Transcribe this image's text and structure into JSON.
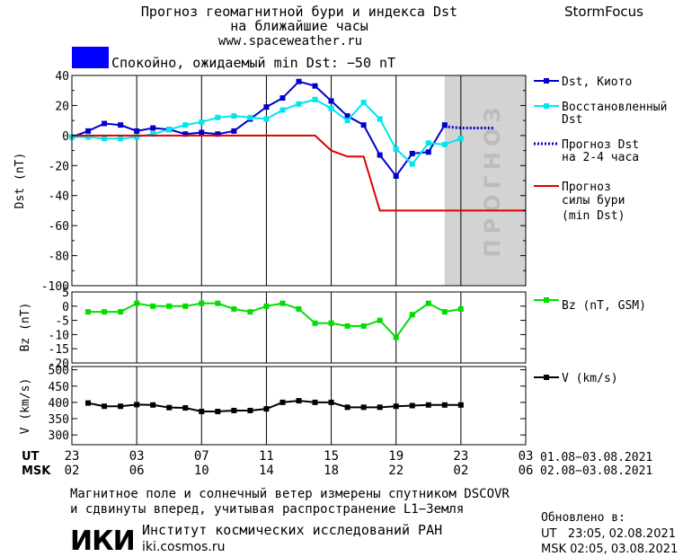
{
  "header": {
    "title_line1": "Прогноз геомагнитной бури и индекса Dst",
    "title_line2": "на ближайшие часы",
    "site": "www.spaceweather.ru",
    "brand": "StormFocus"
  },
  "status": {
    "text": "Спокойно, ожидаемый min Dst: −50 nT",
    "color": "#0000ff"
  },
  "forecast_band_label": "ПРОГНОЗ",
  "legend": {
    "dst_kyoto": "Dst, Киото",
    "restored_1": "Восстановленный",
    "restored_2": "Dst",
    "forecast_1": "Прогноз Dst",
    "forecast_2": "на 2-4 часа",
    "storm_1": "Прогноз",
    "storm_2": "силы бури",
    "storm_3": "(min Dst)",
    "bz": "Bz (nT, GSM)",
    "v": "V (km/s)"
  },
  "time_axis": {
    "ut_label": "UT",
    "msk_label": "MSK",
    "ut_ticks": [
      "23",
      "03",
      "07",
      "11",
      "15",
      "19",
      "23",
      "03"
    ],
    "msk_ticks": [
      "02",
      "06",
      "10",
      "14",
      "18",
      "22",
      "02",
      "06"
    ],
    "ut_range": "01.08−03.08.2021",
    "msk_range": "02.08−03.08.2021"
  },
  "footer": {
    "note_line1": "Магнитное поле и солнечный ветер измерены спутником DSCOVR",
    "note_line2": "и сдвинуты вперед, учитывая распространение L1−Земля",
    "institute_logo": "ИКИ",
    "institute": "Институт космических исследований РАН",
    "institute_site": "iki.cosmos.ru",
    "updated": "Обновлено в:",
    "updated_ut": "UT   23:05, 02.08.2021",
    "updated_msk": "MSK 02:05, 03.08.2021"
  },
  "chart_data": [
    {
      "type": "line",
      "ylabel": "Dst (nT)",
      "ylim": [
        -100,
        40
      ],
      "yticks": [
        40,
        20,
        0,
        -20,
        -40,
        -60,
        -80,
        -100
      ],
      "xlim": [
        0,
        28
      ],
      "forecast_region": [
        23,
        28
      ],
      "series": [
        {
          "name": "Dst, Киото",
          "color": "#0000cc",
          "x": [
            0,
            1,
            2,
            3,
            4,
            5,
            6,
            7,
            8,
            9,
            10,
            11,
            12,
            13,
            14,
            15,
            16,
            17,
            18,
            19,
            20,
            21,
            22,
            23
          ],
          "y": [
            -1,
            3,
            8,
            7,
            3,
            5,
            4,
            1,
            2,
            1,
            3,
            11,
            19,
            25,
            36,
            33,
            23,
            13,
            7,
            -13,
            -27,
            -12,
            -11,
            7
          ]
        },
        {
          "name": "Восстановленный Dst",
          "color": "#00e5ee",
          "x": [
            0,
            1,
            2,
            3,
            4,
            5,
            6,
            7,
            8,
            9,
            10,
            11,
            12,
            13,
            14,
            15,
            16,
            17,
            18,
            19,
            20,
            21,
            22,
            23,
            24
          ],
          "y": [
            -1,
            -1,
            -2,
            -2,
            -1,
            1,
            4,
            7,
            9,
            12,
            13,
            12,
            11,
            17,
            21,
            24,
            18,
            10,
            22,
            11,
            -9,
            -19,
            -5,
            -6,
            -2
          ]
        },
        {
          "name": "Прогноз Dst на 2-4 часа",
          "color": "#0000cc",
          "x": [
            23,
            24,
            25,
            26
          ],
          "y": [
            6,
            5,
            5,
            5
          ]
        },
        {
          "name": "Прогноз силы бури (min Dst)",
          "color": "#dd0000",
          "x": [
            0,
            15,
            16,
            17,
            18,
            19,
            20,
            28
          ],
          "y": [
            0,
            0,
            -10,
            -14,
            -14,
            -50,
            -50,
            -50
          ]
        }
      ]
    },
    {
      "type": "line",
      "ylabel": "Bz (nT)",
      "ylim": [
        -20,
        5
      ],
      "yticks": [
        5,
        0,
        -5,
        -10,
        -15,
        -20
      ],
      "xlim": [
        0,
        28
      ],
      "series": [
        {
          "name": "Bz (nT, GSM)",
          "color": "#00dd00",
          "x": [
            1,
            2,
            3,
            4,
            5,
            6,
            7,
            8,
            9,
            10,
            11,
            12,
            13,
            14,
            15,
            16,
            17,
            18,
            19,
            20,
            21,
            22,
            23,
            24
          ],
          "y": [
            -2,
            -2,
            -2,
            1,
            0,
            0,
            0,
            1,
            1,
            -1,
            -2,
            0,
            1,
            -1,
            -6,
            -6,
            -7,
            -7,
            -5,
            -11,
            -3,
            1,
            -2,
            -1
          ]
        }
      ]
    },
    {
      "type": "line",
      "ylabel": "V (km/s)",
      "ylim": [
        270,
        510
      ],
      "yticks": [
        500,
        450,
        400,
        350,
        300
      ],
      "xlim": [
        0,
        28
      ],
      "series": [
        {
          "name": "V (km/s)",
          "color": "#000000",
          "x": [
            1,
            2,
            3,
            4,
            5,
            6,
            7,
            8,
            9,
            10,
            11,
            12,
            13,
            14,
            15,
            16,
            17,
            18,
            19,
            20,
            21,
            22,
            23,
            24
          ],
          "y": [
            398,
            388,
            388,
            393,
            392,
            384,
            383,
            372,
            372,
            375,
            375,
            380,
            400,
            405,
            400,
            400,
            385,
            385,
            385,
            388,
            390,
            392,
            392,
            392
          ]
        }
      ]
    }
  ]
}
